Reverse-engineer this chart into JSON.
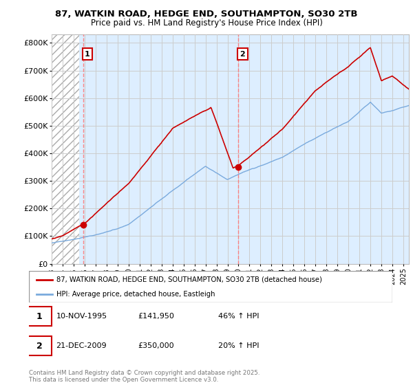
{
  "title": "87, WATKIN ROAD, HEDGE END, SOUTHAMPTON, SO30 2TB",
  "subtitle": "Price paid vs. HM Land Registry's House Price Index (HPI)",
  "ylabel_ticks": [
    "£0",
    "£100K",
    "£200K",
    "£300K",
    "£400K",
    "£500K",
    "£600K",
    "£700K",
    "£800K"
  ],
  "ytick_vals": [
    0,
    100000,
    200000,
    300000,
    400000,
    500000,
    600000,
    700000,
    800000
  ],
  "ylim": [
    0,
    830000
  ],
  "legend_line1": "87, WATKIN ROAD, HEDGE END, SOUTHAMPTON, SO30 2TB (detached house)",
  "legend_line2": "HPI: Average price, detached house, Eastleigh",
  "purchase1_date": "10-NOV-1995",
  "purchase1_price": "£141,950",
  "purchase1_hpi": "46% ↑ HPI",
  "purchase2_date": "21-DEC-2009",
  "purchase2_price": "£350,000",
  "purchase2_hpi": "20% ↑ HPI",
  "copyright": "Contains HM Land Registry data © Crown copyright and database right 2025.\nThis data is licensed under the Open Government Licence v3.0.",
  "property_color": "#cc0000",
  "hpi_color": "#7aaadd",
  "grid_color": "#cccccc",
  "purchase1_x_year": 1995.86,
  "purchase2_x_year": 2009.97,
  "purchase1_y": 141950,
  "purchase2_y": 350000,
  "xmin": 1993,
  "xmax": 2025.5,
  "chart_bg": "#ddeeff"
}
